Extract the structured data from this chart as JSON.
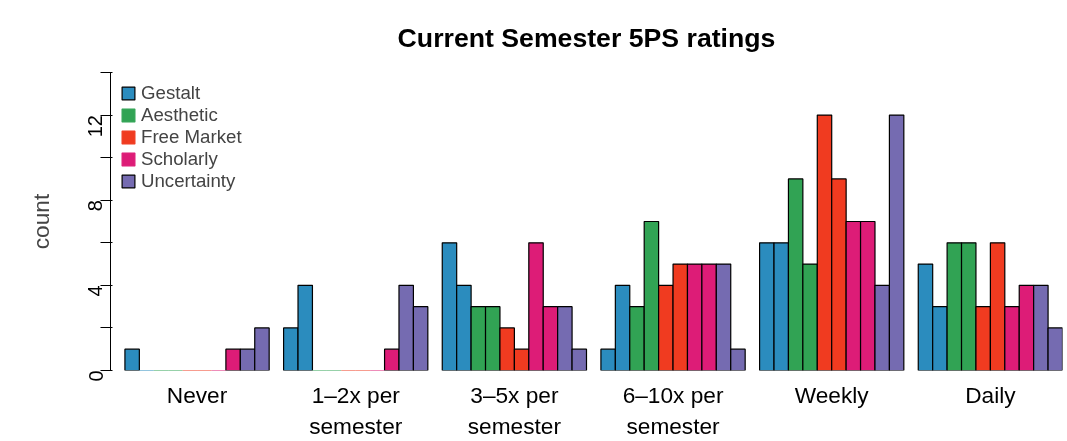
{
  "chart_data": {
    "type": "bar",
    "title": "Current Semester 5PS ratings",
    "ylabel": "count",
    "categories": [
      "Never",
      "1–2x per semester",
      "3–5x per semester",
      "6–10x per semester",
      "Weekly",
      "Daily"
    ],
    "series": [
      {
        "name": "Gestalt",
        "color": "#2b8cbe",
        "values": [
          1,
          2,
          6,
          1,
          6,
          5
        ]
      },
      {
        "color": "#2b8cbe",
        "values": [
          0,
          4,
          4,
          4,
          6,
          3
        ]
      },
      {
        "name": "Aesthetic",
        "color": "#31a354",
        "values": [
          0,
          0,
          3,
          3,
          9,
          6
        ]
      },
      {
        "color": "#31a354",
        "values": [
          0,
          0,
          3,
          7,
          5,
          6
        ]
      },
      {
        "name": "Free Market",
        "color": "#f03b20",
        "values": [
          0,
          0,
          2,
          4,
          12,
          3
        ]
      },
      {
        "color": "#f03b20",
        "values": [
          0,
          0,
          1,
          5,
          9,
          6
        ]
      },
      {
        "name": "Scholarly",
        "color": "#dd1c77",
        "values": [
          0,
          0,
          6,
          5,
          7,
          3
        ]
      },
      {
        "color": "#dd1c77",
        "values": [
          1,
          1,
          3,
          5,
          7,
          4
        ]
      },
      {
        "name": "Uncertainty",
        "color": "#756bb1",
        "values": [
          1,
          4,
          3,
          5,
          4,
          4
        ]
      },
      {
        "color": "#756bb1",
        "values": [
          2,
          3,
          1,
          1,
          12,
          2
        ]
      }
    ],
    "ylim": [
      0,
      14
    ],
    "yticks": [
      0,
      {
        "value": 2,
        "label": null
      },
      4,
      {
        "value": 6,
        "label": null
      },
      8,
      {
        "value": 10,
        "label": null
      },
      12,
      {
        "value": 14,
        "label": null
      }
    ],
    "legend": "top left"
  }
}
